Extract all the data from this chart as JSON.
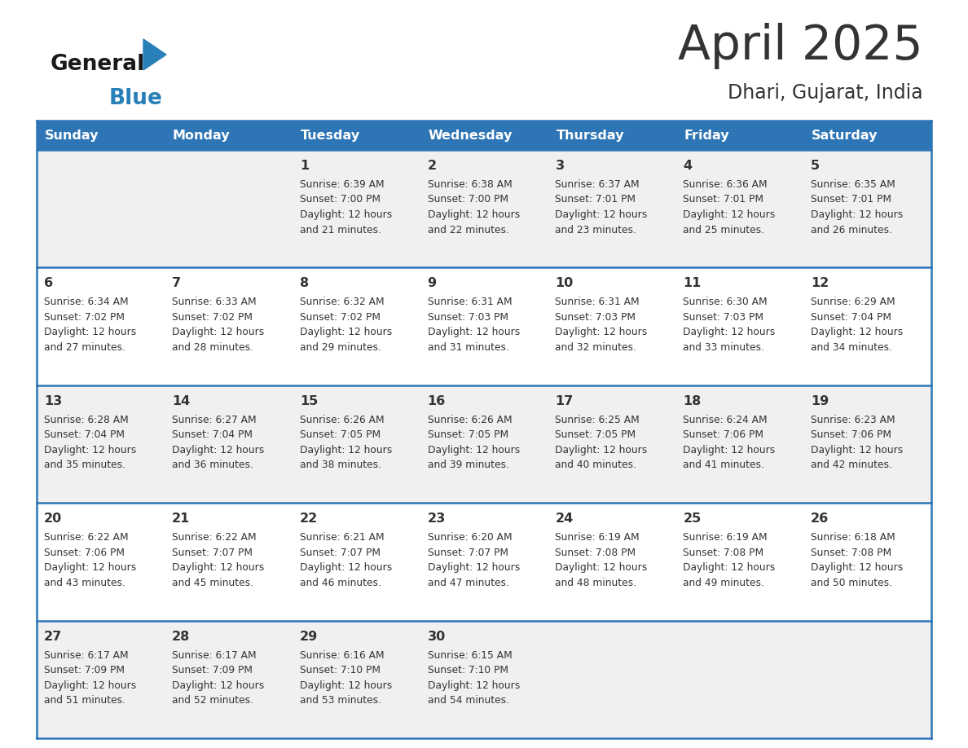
{
  "title": "April 2025",
  "subtitle": "Dhari, Gujarat, India",
  "header_bg": "#2E75B6",
  "header_text_color": "#FFFFFF",
  "row_bg_odd": "#F0F0F0",
  "row_bg_even": "#FFFFFF",
  "border_color": "#2E75B6",
  "text_color": "#333333",
  "days_of_week": [
    "Sunday",
    "Monday",
    "Tuesday",
    "Wednesday",
    "Thursday",
    "Friday",
    "Saturday"
  ],
  "weeks": [
    [
      {
        "day": null,
        "sunrise": null,
        "sunset": null,
        "daylight_min": null
      },
      {
        "day": null,
        "sunrise": null,
        "sunset": null,
        "daylight_min": null
      },
      {
        "day": 1,
        "sunrise": "6:39 AM",
        "sunset": "7:00 PM",
        "daylight_min": 21
      },
      {
        "day": 2,
        "sunrise": "6:38 AM",
        "sunset": "7:00 PM",
        "daylight_min": 22
      },
      {
        "day": 3,
        "sunrise": "6:37 AM",
        "sunset": "7:01 PM",
        "daylight_min": 23
      },
      {
        "day": 4,
        "sunrise": "6:36 AM",
        "sunset": "7:01 PM",
        "daylight_min": 25
      },
      {
        "day": 5,
        "sunrise": "6:35 AM",
        "sunset": "7:01 PM",
        "daylight_min": 26
      }
    ],
    [
      {
        "day": 6,
        "sunrise": "6:34 AM",
        "sunset": "7:02 PM",
        "daylight_min": 27
      },
      {
        "day": 7,
        "sunrise": "6:33 AM",
        "sunset": "7:02 PM",
        "daylight_min": 28
      },
      {
        "day": 8,
        "sunrise": "6:32 AM",
        "sunset": "7:02 PM",
        "daylight_min": 29
      },
      {
        "day": 9,
        "sunrise": "6:31 AM",
        "sunset": "7:03 PM",
        "daylight_min": 31
      },
      {
        "day": 10,
        "sunrise": "6:31 AM",
        "sunset": "7:03 PM",
        "daylight_min": 32
      },
      {
        "day": 11,
        "sunrise": "6:30 AM",
        "sunset": "7:03 PM",
        "daylight_min": 33
      },
      {
        "day": 12,
        "sunrise": "6:29 AM",
        "sunset": "7:04 PM",
        "daylight_min": 34
      }
    ],
    [
      {
        "day": 13,
        "sunrise": "6:28 AM",
        "sunset": "7:04 PM",
        "daylight_min": 35
      },
      {
        "day": 14,
        "sunrise": "6:27 AM",
        "sunset": "7:04 PM",
        "daylight_min": 36
      },
      {
        "day": 15,
        "sunrise": "6:26 AM",
        "sunset": "7:05 PM",
        "daylight_min": 38
      },
      {
        "day": 16,
        "sunrise": "6:26 AM",
        "sunset": "7:05 PM",
        "daylight_min": 39
      },
      {
        "day": 17,
        "sunrise": "6:25 AM",
        "sunset": "7:05 PM",
        "daylight_min": 40
      },
      {
        "day": 18,
        "sunrise": "6:24 AM",
        "sunset": "7:06 PM",
        "daylight_min": 41
      },
      {
        "day": 19,
        "sunrise": "6:23 AM",
        "sunset": "7:06 PM",
        "daylight_min": 42
      }
    ],
    [
      {
        "day": 20,
        "sunrise": "6:22 AM",
        "sunset": "7:06 PM",
        "daylight_min": 43
      },
      {
        "day": 21,
        "sunrise": "6:22 AM",
        "sunset": "7:07 PM",
        "daylight_min": 45
      },
      {
        "day": 22,
        "sunrise": "6:21 AM",
        "sunset": "7:07 PM",
        "daylight_min": 46
      },
      {
        "day": 23,
        "sunrise": "6:20 AM",
        "sunset": "7:07 PM",
        "daylight_min": 47
      },
      {
        "day": 24,
        "sunrise": "6:19 AM",
        "sunset": "7:08 PM",
        "daylight_min": 48
      },
      {
        "day": 25,
        "sunrise": "6:19 AM",
        "sunset": "7:08 PM",
        "daylight_min": 49
      },
      {
        "day": 26,
        "sunrise": "6:18 AM",
        "sunset": "7:08 PM",
        "daylight_min": 50
      }
    ],
    [
      {
        "day": 27,
        "sunrise": "6:17 AM",
        "sunset": "7:09 PM",
        "daylight_min": 51
      },
      {
        "day": 28,
        "sunrise": "6:17 AM",
        "sunset": "7:09 PM",
        "daylight_min": 52
      },
      {
        "day": 29,
        "sunrise": "6:16 AM",
        "sunset": "7:10 PM",
        "daylight_min": 53
      },
      {
        "day": 30,
        "sunrise": "6:15 AM",
        "sunset": "7:10 PM",
        "daylight_min": 54
      },
      {
        "day": null,
        "sunrise": null,
        "sunset": null,
        "daylight_min": null
      },
      {
        "day": null,
        "sunrise": null,
        "sunset": null,
        "daylight_min": null
      },
      {
        "day": null,
        "sunrise": null,
        "sunset": null,
        "daylight_min": null
      }
    ]
  ],
  "logo_blue_color": "#2980B9",
  "logo_dark_color": "#1a1a1a",
  "fig_width": 11.88,
  "fig_height": 9.18,
  "dpi": 100
}
